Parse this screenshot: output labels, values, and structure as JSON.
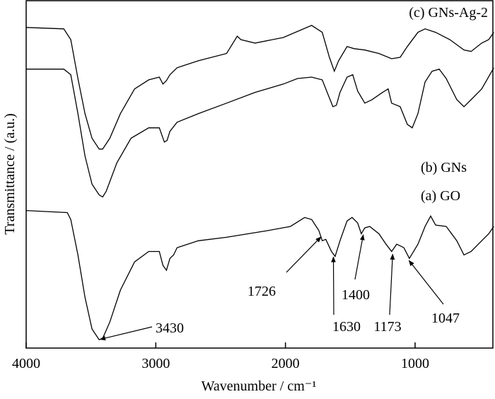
{
  "chart_data": {
    "type": "line",
    "x_label": "Wavenumber / cm⁻¹",
    "y_label": "Transmittance / (a.u.)",
    "xlim": [
      4000,
      400
    ],
    "ylim": [
      0,
      100
    ],
    "xticks": [
      4000,
      3000,
      2000,
      1000
    ],
    "annotations": [
      3430,
      1726,
      1630,
      1400,
      1173,
      1047
    ],
    "series": [
      {
        "name": "(a) GO",
        "color": "#000000",
        "x": [
          4000,
          3683,
          3656,
          3601,
          3546,
          3492,
          3437,
          3410,
          3355,
          3273,
          3164,
          3055,
          2973,
          2945,
          2918,
          2891,
          2863,
          2836,
          2672,
          2454,
          2290,
          2126,
          1962,
          1852,
          1798,
          1743,
          1716,
          1689,
          1645,
          1617,
          1579,
          1525,
          1486,
          1443,
          1415,
          1388,
          1350,
          1279,
          1224,
          1181,
          1142,
          1087,
          1044,
          978,
          923,
          880,
          842,
          760,
          678,
          623,
          568,
          486,
          432,
          393
        ],
        "values": [
          39.6,
          39.0,
          37.0,
          26.8,
          14.6,
          5.5,
          2.4,
          2.8,
          7.5,
          16.7,
          24.8,
          27.8,
          27.8,
          23.8,
          22.4,
          25.8,
          26.8,
          28.9,
          30.9,
          31.9,
          32.9,
          33.9,
          35.0,
          37.6,
          37.0,
          33.9,
          30.9,
          31.3,
          27.8,
          26.4,
          30.9,
          36.6,
          37.6,
          36.0,
          32.9,
          34.6,
          35.0,
          32.9,
          29.9,
          27.8,
          29.9,
          28.9,
          25.8,
          29.9,
          35.0,
          38.0,
          35.4,
          35.0,
          30.9,
          26.8,
          27.8,
          30.9,
          32.9,
          35.0
        ]
      },
      {
        "name": "(b) GNs",
        "color": "#000000",
        "x": [
          4000,
          3710,
          3656,
          3601,
          3546,
          3492,
          3437,
          3410,
          3383,
          3301,
          3191,
          3055,
          2973,
          2934,
          2913,
          2891,
          2836,
          2672,
          2454,
          2235,
          2016,
          1907,
          1798,
          1716,
          1678,
          1634,
          1607,
          1579,
          1525,
          1481,
          1443,
          1388,
          1333,
          1251,
          1208,
          1181,
          1115,
          1060,
          1022,
          978,
          923,
          869,
          814,
          760,
          678,
          623,
          568,
          486,
          393
        ],
        "values": [
          80.3,
          80.3,
          78.7,
          67.5,
          55.3,
          47.2,
          44.1,
          43.5,
          45.1,
          53.3,
          60.4,
          63.4,
          63.4,
          59.3,
          59.8,
          62.4,
          65.0,
          67.5,
          70.5,
          73.6,
          76.0,
          77.6,
          78.0,
          77.2,
          73.6,
          69.5,
          69.9,
          73.6,
          78.0,
          78.7,
          74.0,
          70.5,
          71.5,
          73.6,
          74.6,
          70.5,
          69.5,
          64.4,
          63.4,
          67.5,
          76.6,
          79.7,
          80.3,
          77.6,
          71.5,
          69.5,
          71.5,
          74.6,
          80.7
        ]
      },
      {
        "name": "(c) GNs-Ag-2",
        "color": "#000000",
        "x": [
          4000,
          3710,
          3656,
          3601,
          3546,
          3492,
          3437,
          3410,
          3355,
          3273,
          3164,
          3055,
          2973,
          2945,
          2918,
          2891,
          2836,
          2672,
          2454,
          2372,
          2344,
          2235,
          2016,
          1798,
          1716,
          1661,
          1623,
          1590,
          1525,
          1470,
          1388,
          1279,
          1181,
          1115,
          1060,
          978,
          923,
          842,
          732,
          623,
          568,
          486,
          432,
          393
        ],
        "values": [
          92.3,
          91.9,
          88.8,
          77.6,
          67.5,
          60.4,
          57.3,
          57.3,
          60.4,
          67.5,
          74.6,
          77.2,
          78.0,
          76.0,
          77.0,
          78.7,
          80.7,
          82.7,
          84.8,
          89.8,
          88.8,
          87.8,
          89.4,
          92.9,
          90.9,
          83.7,
          79.7,
          82.7,
          86.8,
          86.2,
          85.8,
          84.8,
          83.3,
          83.7,
          86.8,
          90.9,
          91.9,
          90.9,
          88.8,
          85.8,
          85.4,
          87.8,
          88.8,
          90.9
        ]
      }
    ]
  }
}
